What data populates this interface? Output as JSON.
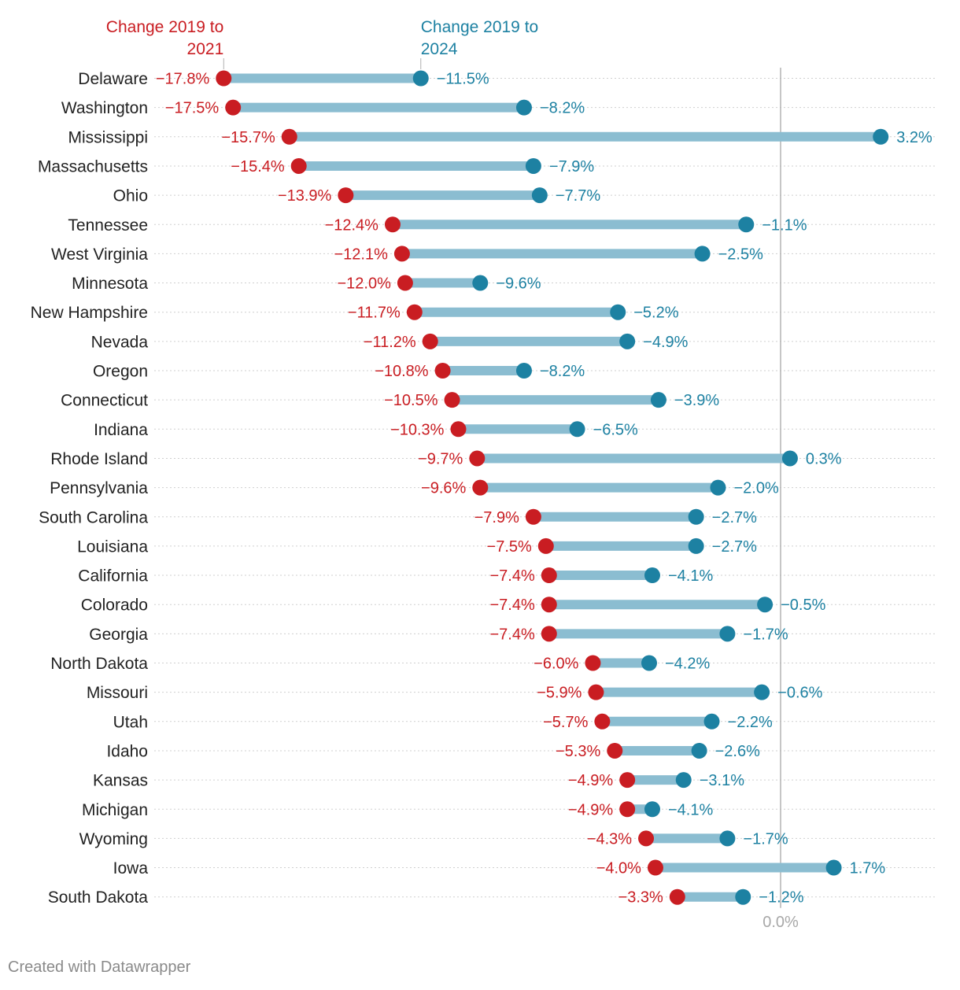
{
  "chart_data": {
    "type": "dot-range",
    "series": [
      {
        "name": "Change 2019 to 2021",
        "label_lines": [
          "Change 2019 to",
          "2021"
        ],
        "color": "#c91d22"
      },
      {
        "name": "Change 2019 to 2024",
        "label_lines": [
          "Change 2019 to",
          "2024"
        ],
        "color": "#1d81a2"
      }
    ],
    "range_color": "#8bbdd1",
    "states": [
      {
        "name": "Delaware",
        "v2021": -17.8,
        "v2024": -11.5
      },
      {
        "name": "Washington",
        "v2021": -17.5,
        "v2024": -8.2
      },
      {
        "name": "Mississippi",
        "v2021": -15.7,
        "v2024": 3.2
      },
      {
        "name": "Massachusetts",
        "v2021": -15.4,
        "v2024": -7.9
      },
      {
        "name": "Ohio",
        "v2021": -13.9,
        "v2024": -7.7
      },
      {
        "name": "Tennessee",
        "v2021": -12.4,
        "v2024": -1.1
      },
      {
        "name": "West Virginia",
        "v2021": -12.1,
        "v2024": -2.5
      },
      {
        "name": "Minnesota",
        "v2021": -12.0,
        "v2024": -9.6
      },
      {
        "name": "New Hampshire",
        "v2021": -11.7,
        "v2024": -5.2
      },
      {
        "name": "Nevada",
        "v2021": -11.2,
        "v2024": -4.9
      },
      {
        "name": "Oregon",
        "v2021": -10.8,
        "v2024": -8.2
      },
      {
        "name": "Connecticut",
        "v2021": -10.5,
        "v2024": -3.9
      },
      {
        "name": "Indiana",
        "v2021": -10.3,
        "v2024": -6.5
      },
      {
        "name": "Rhode Island",
        "v2021": -9.7,
        "v2024": 0.3
      },
      {
        "name": "Pennsylvania",
        "v2021": -9.6,
        "v2024": -2.0
      },
      {
        "name": "South Carolina",
        "v2021": -7.9,
        "v2024": -2.7
      },
      {
        "name": "Louisiana",
        "v2021": -7.5,
        "v2024": -2.7
      },
      {
        "name": "California",
        "v2021": -7.4,
        "v2024": -4.1
      },
      {
        "name": "Colorado",
        "v2021": -7.4,
        "v2024": -0.5
      },
      {
        "name": "Georgia",
        "v2021": -7.4,
        "v2024": -1.7
      },
      {
        "name": "North Dakota",
        "v2021": -6.0,
        "v2024": -4.2
      },
      {
        "name": "Missouri",
        "v2021": -5.9,
        "v2024": -0.6
      },
      {
        "name": "Utah",
        "v2021": -5.7,
        "v2024": -2.2
      },
      {
        "name": "Idaho",
        "v2021": -5.3,
        "v2024": -2.6
      },
      {
        "name": "Kansas",
        "v2021": -4.9,
        "v2024": -3.1
      },
      {
        "name": "Michigan",
        "v2021": -4.9,
        "v2024": -4.1
      },
      {
        "name": "Wyoming",
        "v2021": -4.3,
        "v2024": -1.7
      },
      {
        "name": "Iowa",
        "v2021": -4.0,
        "v2024": 1.7
      },
      {
        "name": "South Dakota",
        "v2021": -3.3,
        "v2024": -1.2
      }
    ],
    "x_axis": {
      "ticks": [
        0
      ],
      "tick_labels": [
        "0.0%"
      ],
      "range": [
        -18.0,
        4.0
      ]
    }
  },
  "footer": {
    "credit": "Created with Datawrapper"
  }
}
